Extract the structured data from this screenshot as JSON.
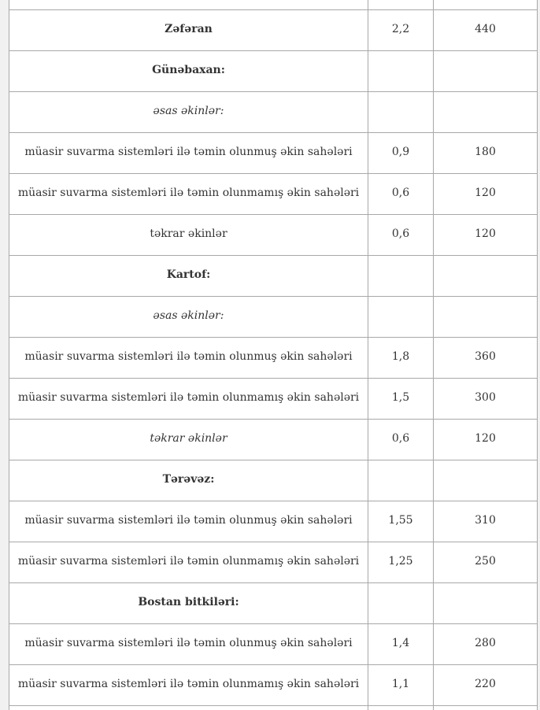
{
  "theme": {
    "page_background": "#f1f1f1",
    "cell_background": "#ffffff",
    "border_color": "#a8a8a8",
    "text_color": "#333333"
  },
  "table": {
    "language": "az",
    "rows": [
      {
        "kind": "spacer-top",
        "label": "",
        "emphasis": "normal",
        "v1": "",
        "v2": ""
      },
      {
        "kind": "data",
        "label": "Zəfəran",
        "emphasis": "bold",
        "v1": "2,2",
        "v2": "440"
      },
      {
        "kind": "data",
        "label": "Günəbaxan:",
        "emphasis": "bold",
        "v1": "",
        "v2": ""
      },
      {
        "kind": "data",
        "label": "əsas əkinlər:",
        "emphasis": "italic",
        "v1": "",
        "v2": ""
      },
      {
        "kind": "data",
        "label": "müasir suvarma sistemləri ilə təmin olunmuş əkin sahələri",
        "emphasis": "normal",
        "v1": "0,9",
        "v2": "180"
      },
      {
        "kind": "data",
        "label": "müasir suvarma sistemləri ilə təmin olunmamış əkin sahələri",
        "emphasis": "normal",
        "v1": "0,6",
        "v2": "120"
      },
      {
        "kind": "data",
        "label": "təkrar əkinlər",
        "emphasis": "normal",
        "v1": "0,6",
        "v2": "120"
      },
      {
        "kind": "data",
        "label": "Kartof:",
        "emphasis": "bold",
        "v1": "",
        "v2": ""
      },
      {
        "kind": "data",
        "label": "əsas əkinlər:",
        "emphasis": "italic",
        "v1": "",
        "v2": ""
      },
      {
        "kind": "data",
        "label": "müasir suvarma sistemləri ilə təmin olunmuş əkin sahələri",
        "emphasis": "normal",
        "v1": "1,8",
        "v2": "360"
      },
      {
        "kind": "data",
        "label": "müasir suvarma sistemləri ilə təmin olunmamış əkin sahələri",
        "emphasis": "normal",
        "v1": "1,5",
        "v2": "300"
      },
      {
        "kind": "data",
        "label": "təkrar əkinlər",
        "emphasis": "italic",
        "v1": "0,6",
        "v2": "120"
      },
      {
        "kind": "data",
        "label": "Tərəvəz:",
        "emphasis": "bold",
        "v1": "",
        "v2": ""
      },
      {
        "kind": "data",
        "label": "müasir suvarma sistemləri ilə təmin olunmuş əkin sahələri",
        "emphasis": "normal",
        "v1": "1,55",
        "v2": "310"
      },
      {
        "kind": "data",
        "label": "müasir suvarma sistemləri ilə təmin olunmamış əkin sahələri",
        "emphasis": "normal",
        "v1": "1,25",
        "v2": "250"
      },
      {
        "kind": "data",
        "label": "Bostan bitkiləri:",
        "emphasis": "bold",
        "v1": "",
        "v2": ""
      },
      {
        "kind": "data",
        "label": "müasir suvarma sistemləri ilə təmin olunmuş əkin sahələri",
        "emphasis": "normal",
        "v1": "1,4",
        "v2": "280"
      },
      {
        "kind": "data",
        "label": "müasir suvarma sistemləri ilə təmin olunmamış əkin sahələri",
        "emphasis": "normal",
        "v1": "1,1",
        "v2": "220"
      },
      {
        "kind": "spacer-bottom",
        "label": "",
        "emphasis": "normal",
        "v1": "",
        "v2": ""
      }
    ]
  }
}
